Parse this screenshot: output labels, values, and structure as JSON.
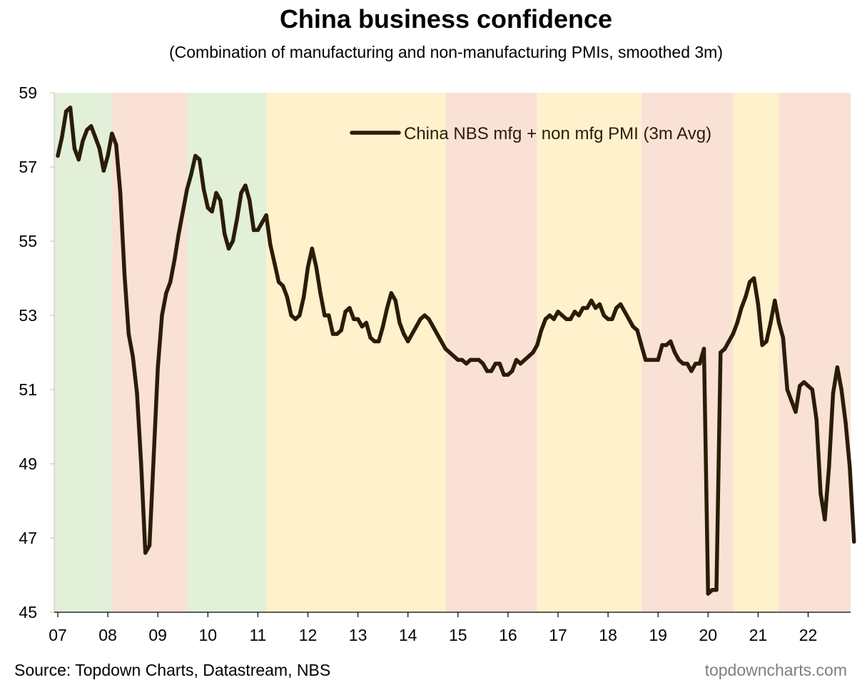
{
  "chart_data": {
    "type": "line",
    "title": "China business confidence",
    "subtitle": "(Combination of manufacturing and non-manufacturing PMIs, smoothed 3m)",
    "xlabel": "",
    "ylabel": "",
    "ylim": [
      45,
      59
    ],
    "yticks": [
      "45",
      "47",
      "49",
      "51",
      "53",
      "55",
      "57",
      "59"
    ],
    "xticks": [
      "07",
      "08",
      "09",
      "10",
      "11",
      "12",
      "13",
      "14",
      "15",
      "16",
      "17",
      "18",
      "19",
      "20",
      "21",
      "22"
    ],
    "xtick_years": [
      2007,
      2008,
      2009,
      2010,
      2011,
      2012,
      2013,
      2014,
      2015,
      2016,
      2017,
      2018,
      2019,
      2020,
      2021,
      2022
    ],
    "xlim": [
      "2006-11",
      "2022-12"
    ],
    "grid": false,
    "legend_position": "top-right",
    "series": [
      {
        "name": "China NBS mfg + non mfg PMI (3m Avg)",
        "color": "#2a1d06",
        "points": [
          [
            "2007-01",
            57.3
          ],
          [
            "2007-02",
            57.8
          ],
          [
            "2007-03",
            58.5
          ],
          [
            "2007-04",
            58.6
          ],
          [
            "2007-05",
            57.5
          ],
          [
            "2007-06",
            57.2
          ],
          [
            "2007-07",
            57.7
          ],
          [
            "2007-08",
            58.0
          ],
          [
            "2007-09",
            58.1
          ],
          [
            "2007-10",
            57.8
          ],
          [
            "2007-11",
            57.5
          ],
          [
            "2007-12",
            56.9
          ],
          [
            "2008-01",
            57.3
          ],
          [
            "2008-02",
            57.9
          ],
          [
            "2008-03",
            57.6
          ],
          [
            "2008-04",
            56.3
          ],
          [
            "2008-05",
            54.1
          ],
          [
            "2008-06",
            52.5
          ],
          [
            "2008-07",
            51.9
          ],
          [
            "2008-08",
            50.9
          ],
          [
            "2008-09",
            49.0
          ],
          [
            "2008-10",
            46.6
          ],
          [
            "2008-11",
            46.8
          ],
          [
            "2008-12",
            49.2
          ],
          [
            "2009-01",
            51.6
          ],
          [
            "2009-02",
            53.0
          ],
          [
            "2009-03",
            53.6
          ],
          [
            "2009-04",
            53.9
          ],
          [
            "2009-05",
            54.5
          ],
          [
            "2009-06",
            55.2
          ],
          [
            "2009-07",
            55.8
          ],
          [
            "2009-08",
            56.4
          ],
          [
            "2009-09",
            56.8
          ],
          [
            "2009-10",
            57.3
          ],
          [
            "2009-11",
            57.2
          ],
          [
            "2009-12",
            56.4
          ],
          [
            "2010-01",
            55.9
          ],
          [
            "2010-02",
            55.8
          ],
          [
            "2010-03",
            56.3
          ],
          [
            "2010-04",
            56.1
          ],
          [
            "2010-05",
            55.2
          ],
          [
            "2010-06",
            54.8
          ],
          [
            "2010-07",
            55.0
          ],
          [
            "2010-08",
            55.6
          ],
          [
            "2010-09",
            56.3
          ],
          [
            "2010-10",
            56.5
          ],
          [
            "2010-11",
            56.1
          ],
          [
            "2010-12",
            55.3
          ],
          [
            "2011-01",
            55.3
          ],
          [
            "2011-02",
            55.5
          ],
          [
            "2011-03",
            55.7
          ],
          [
            "2011-04",
            54.9
          ],
          [
            "2011-05",
            54.4
          ],
          [
            "2011-06",
            53.9
          ],
          [
            "2011-07",
            53.8
          ],
          [
            "2011-08",
            53.5
          ],
          [
            "2011-09",
            53.0
          ],
          [
            "2011-10",
            52.9
          ],
          [
            "2011-11",
            53.0
          ],
          [
            "2011-12",
            53.5
          ],
          [
            "2012-01",
            54.3
          ],
          [
            "2012-02",
            54.8
          ],
          [
            "2012-03",
            54.3
          ],
          [
            "2012-04",
            53.6
          ],
          [
            "2012-05",
            53.0
          ],
          [
            "2012-06",
            53.0
          ],
          [
            "2012-07",
            52.5
          ],
          [
            "2012-08",
            52.5
          ],
          [
            "2012-09",
            52.6
          ],
          [
            "2012-10",
            53.1
          ],
          [
            "2012-11",
            53.2
          ],
          [
            "2012-12",
            52.9
          ],
          [
            "2013-01",
            52.9
          ],
          [
            "2013-02",
            52.7
          ],
          [
            "2013-03",
            52.8
          ],
          [
            "2013-04",
            52.4
          ],
          [
            "2013-05",
            52.3
          ],
          [
            "2013-06",
            52.3
          ],
          [
            "2013-07",
            52.7
          ],
          [
            "2013-08",
            53.2
          ],
          [
            "2013-09",
            53.6
          ],
          [
            "2013-10",
            53.4
          ],
          [
            "2013-11",
            52.8
          ],
          [
            "2013-12",
            52.5
          ],
          [
            "2014-01",
            52.3
          ],
          [
            "2014-02",
            52.5
          ],
          [
            "2014-03",
            52.7
          ],
          [
            "2014-04",
            52.9
          ],
          [
            "2014-05",
            53.0
          ],
          [
            "2014-06",
            52.9
          ],
          [
            "2014-07",
            52.7
          ],
          [
            "2014-08",
            52.5
          ],
          [
            "2014-09",
            52.3
          ],
          [
            "2014-10",
            52.1
          ],
          [
            "2014-11",
            52.0
          ],
          [
            "2014-12",
            51.9
          ],
          [
            "2015-01",
            51.8
          ],
          [
            "2015-02",
            51.8
          ],
          [
            "2015-03",
            51.7
          ],
          [
            "2015-04",
            51.8
          ],
          [
            "2015-05",
            51.8
          ],
          [
            "2015-06",
            51.8
          ],
          [
            "2015-07",
            51.7
          ],
          [
            "2015-08",
            51.5
          ],
          [
            "2015-09",
            51.5
          ],
          [
            "2015-10",
            51.7
          ],
          [
            "2015-11",
            51.7
          ],
          [
            "2015-12",
            51.4
          ],
          [
            "2016-01",
            51.4
          ],
          [
            "2016-02",
            51.5
          ],
          [
            "2016-03",
            51.8
          ],
          [
            "2016-04",
            51.7
          ],
          [
            "2016-05",
            51.8
          ],
          [
            "2016-06",
            51.9
          ],
          [
            "2016-07",
            52.0
          ],
          [
            "2016-08",
            52.2
          ],
          [
            "2016-09",
            52.6
          ],
          [
            "2016-10",
            52.9
          ],
          [
            "2016-11",
            53.0
          ],
          [
            "2016-12",
            52.9
          ],
          [
            "2017-01",
            53.1
          ],
          [
            "2017-02",
            53.0
          ],
          [
            "2017-03",
            52.9
          ],
          [
            "2017-04",
            52.9
          ],
          [
            "2017-05",
            53.1
          ],
          [
            "2017-06",
            53.0
          ],
          [
            "2017-07",
            53.2
          ],
          [
            "2017-08",
            53.2
          ],
          [
            "2017-09",
            53.4
          ],
          [
            "2017-10",
            53.2
          ],
          [
            "2017-11",
            53.3
          ],
          [
            "2017-12",
            53.0
          ],
          [
            "2018-01",
            52.9
          ],
          [
            "2018-02",
            52.9
          ],
          [
            "2018-03",
            53.2
          ],
          [
            "2018-04",
            53.3
          ],
          [
            "2018-05",
            53.1
          ],
          [
            "2018-06",
            52.9
          ],
          [
            "2018-07",
            52.7
          ],
          [
            "2018-08",
            52.6
          ],
          [
            "2018-09",
            52.2
          ],
          [
            "2018-10",
            51.8
          ],
          [
            "2018-11",
            51.8
          ],
          [
            "2018-12",
            51.8
          ],
          [
            "2019-01",
            51.8
          ],
          [
            "2019-02",
            52.2
          ],
          [
            "2019-03",
            52.2
          ],
          [
            "2019-04",
            52.3
          ],
          [
            "2019-05",
            52.0
          ],
          [
            "2019-06",
            51.8
          ],
          [
            "2019-07",
            51.7
          ],
          [
            "2019-08",
            51.7
          ],
          [
            "2019-09",
            51.5
          ],
          [
            "2019-10",
            51.7
          ],
          [
            "2019-11",
            51.7
          ],
          [
            "2019-12",
            52.1
          ],
          [
            "2020-01",
            45.5
          ],
          [
            "2020-02",
            45.6
          ],
          [
            "2020-03",
            45.6
          ],
          [
            "2020-04",
            52.0
          ],
          [
            "2020-05",
            52.1
          ],
          [
            "2020-06",
            52.3
          ],
          [
            "2020-07",
            52.5
          ],
          [
            "2020-08",
            52.8
          ],
          [
            "2020-09",
            53.2
          ],
          [
            "2020-10",
            53.5
          ],
          [
            "2020-11",
            53.9
          ],
          [
            "2020-12",
            54.0
          ],
          [
            "2021-01",
            53.3
          ],
          [
            "2021-02",
            52.2
          ],
          [
            "2021-03",
            52.3
          ],
          [
            "2021-04",
            52.8
          ],
          [
            "2021-05",
            53.4
          ],
          [
            "2021-06",
            52.8
          ],
          [
            "2021-07",
            52.4
          ],
          [
            "2021-08",
            51.0
          ],
          [
            "2021-09",
            50.7
          ],
          [
            "2021-10",
            50.4
          ],
          [
            "2021-11",
            51.1
          ],
          [
            "2021-12",
            51.2
          ],
          [
            "2022-01",
            51.1
          ],
          [
            "2022-02",
            51.0
          ],
          [
            "2022-03",
            50.2
          ],
          [
            "2022-04",
            48.2
          ],
          [
            "2022-05",
            47.5
          ],
          [
            "2022-06",
            48.9
          ],
          [
            "2022-07",
            50.9
          ],
          [
            "2022-08",
            51.6
          ],
          [
            "2022-09",
            51.0
          ],
          [
            "2022-10",
            50.1
          ],
          [
            "2022-11",
            48.9
          ],
          [
            "2022-12",
            46.9
          ]
        ]
      }
    ],
    "background_bands": [
      {
        "start": "2006-11",
        "end": "2008-02",
        "color": "#e2efd9"
      },
      {
        "start": "2008-02",
        "end": "2009-08",
        "color": "#f9e1d6"
      },
      {
        "start": "2009-08",
        "end": "2011-03",
        "color": "#e2efd9"
      },
      {
        "start": "2011-03",
        "end": "2014-10",
        "color": "#fff1cc"
      },
      {
        "start": "2014-10",
        "end": "2016-08",
        "color": "#f9e1d6"
      },
      {
        "start": "2016-08",
        "end": "2018-09",
        "color": "#fff1cc"
      },
      {
        "start": "2018-09",
        "end": "2020-07",
        "color": "#f9e1d6"
      },
      {
        "start": "2020-07",
        "end": "2021-06",
        "color": "#fff1cc"
      },
      {
        "start": "2021-06",
        "end": "2022-12",
        "color": "#f9e1d6"
      }
    ]
  },
  "footer": {
    "source": "Source: Topdown Charts, Datastream, NBS",
    "brand": "topdowncharts.com"
  }
}
